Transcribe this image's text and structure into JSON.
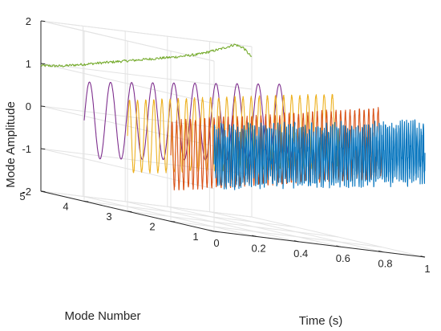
{
  "chart_data": {
    "type": "line",
    "view": "3d",
    "grid": true,
    "xlabel": "Time (s)",
    "ylabel": "Mode Number",
    "zlabel": "Mode Amplitude",
    "xlim": [
      0,
      1
    ],
    "ylim": [
      1,
      5
    ],
    "zlim": [
      -2,
      2
    ],
    "x_ticks": [
      "0",
      "0.2",
      "0.4",
      "0.6",
      "0.8",
      "1"
    ],
    "y_ticks": [
      "1",
      "2",
      "3",
      "4",
      "5"
    ],
    "z_ticks": [
      "-2",
      "-1",
      "0",
      "1",
      "2"
    ],
    "series": [
      {
        "mode": 1,
        "color": "#0072BD",
        "pattern": "oscillation",
        "frequency_hz": 100,
        "amplitude": 0.6,
        "offset_start": -0.25,
        "offset_end": 0.45,
        "noise": 0.2
      },
      {
        "mode": 2,
        "color": "#D95319",
        "pattern": "oscillation",
        "frequency_hz": 45,
        "amplitude": 0.8,
        "offset_start": -0.45,
        "offset_end": 0.45,
        "noise": 0.05
      },
      {
        "mode": 3,
        "color": "#EDB120",
        "pattern": "oscillation",
        "frequency_hz": 26,
        "amplitude": 0.85,
        "offset_start": -0.25,
        "offset_end": 0.5,
        "noise": 0.03
      },
      {
        "mode": 4,
        "color": "#7E2F8E",
        "pattern": "oscillation",
        "frequency_hz": 10,
        "amplitude": 0.9,
        "offset_start": -0.1,
        "offset_end": 0.45,
        "noise": 0
      },
      {
        "mode": 5,
        "color": "#77AC30",
        "pattern": "trend",
        "points": [
          [
            0,
            0.95
          ],
          [
            0.1,
            1.0
          ],
          [
            0.3,
            1.2
          ],
          [
            0.5,
            1.4
          ],
          [
            0.65,
            1.55
          ],
          [
            0.75,
            1.67
          ],
          [
            0.85,
            1.85
          ],
          [
            0.92,
            2.0
          ],
          [
            0.96,
            1.95
          ],
          [
            1.0,
            1.75
          ]
        ],
        "noise": 0.03
      }
    ]
  }
}
